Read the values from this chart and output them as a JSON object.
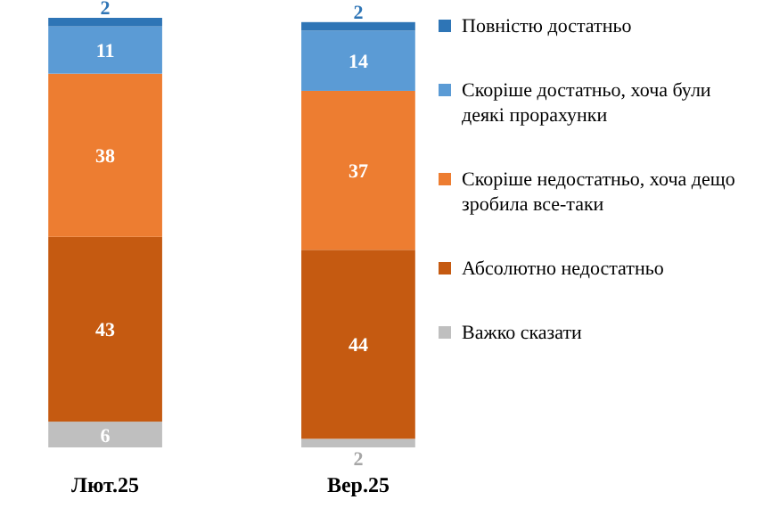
{
  "chart_data": {
    "type": "bar",
    "stacked": true,
    "categories": [
      "Лют.25",
      "Вер.25"
    ],
    "ylim": [
      0,
      100
    ],
    "data_labels": true,
    "legend": "right",
    "series": [
      {
        "name": "Важко сказати",
        "color": "#bfbfbf",
        "values": [
          6,
          2
        ]
      },
      {
        "name": "Абсолютно недостатньо",
        "color": "#c55a11",
        "values": [
          43,
          44
        ]
      },
      {
        "name": "Скоріше недостатньо, хоча дещо зробила все-таки",
        "color": "#ed7d31",
        "values": [
          38,
          37
        ]
      },
      {
        "name": "Скоріше достатньо, хоча були деякі прорахунки",
        "color": "#5b9bd5",
        "values": [
          11,
          14
        ]
      },
      {
        "name": "Повністю достатньо",
        "color": "#2e75b6",
        "values": [
          2,
          2
        ]
      }
    ]
  }
}
